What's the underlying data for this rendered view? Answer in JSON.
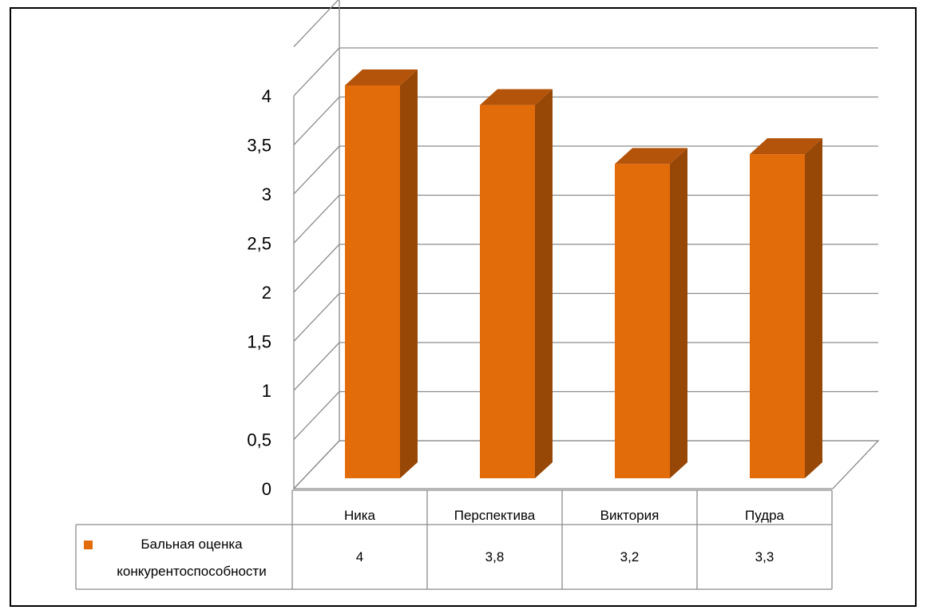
{
  "chart_data": {
    "type": "bar",
    "categories": [
      "Ника",
      "Перспектива",
      "Виктория",
      "Пудра"
    ],
    "series": [
      {
        "name": "Бальная оценка конкурентоспособности",
        "values": [
          4,
          3.8,
          3.2,
          3.3
        ]
      }
    ],
    "data_labels": [
      "4",
      "3,8",
      "3,2",
      "3,3"
    ],
    "legend_line1": "Бальная оценка",
    "legend_line2": "конкурентоспособности",
    "yticks": [
      "0",
      "0,5",
      "1",
      "1,5",
      "2",
      "2,5",
      "3",
      "3,5",
      "4"
    ],
    "ylim": [
      0,
      4.5
    ],
    "grid": true,
    "legend_placement": "data-table",
    "colors": {
      "front": "#e36c0a",
      "side": "#974706",
      "top": "#b4540b",
      "legend": "#e36c0a"
    }
  }
}
